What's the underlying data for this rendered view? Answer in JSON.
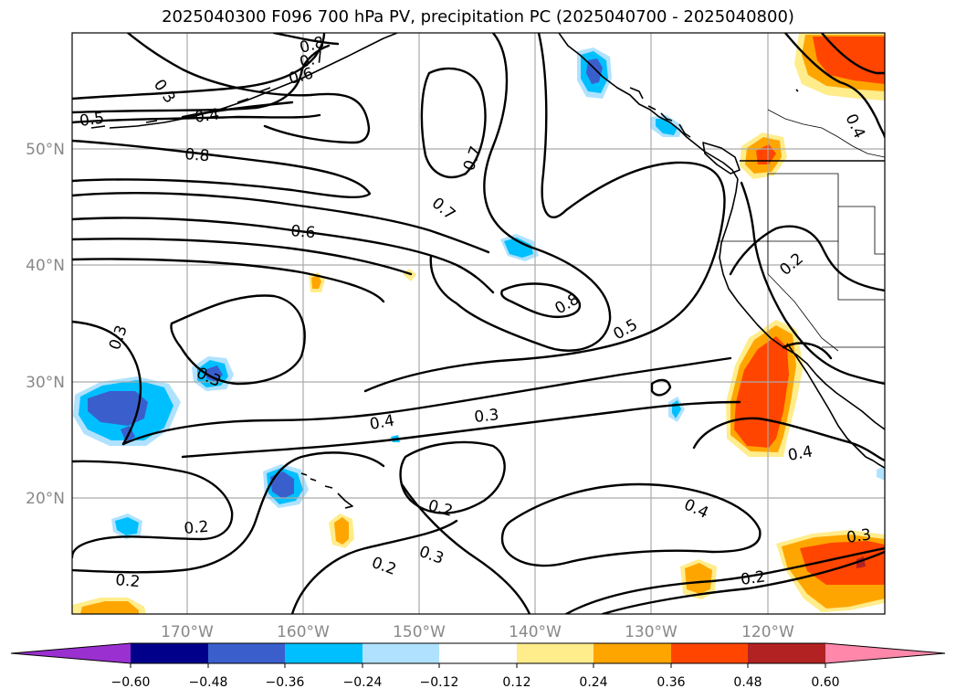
{
  "title": "2025040300 F096 700 hPa PV, precipitation PC (2025040700 - 2025040800)",
  "map": {
    "lat_labels": [
      "50°N",
      "40°N",
      "30°N",
      "20°N"
    ],
    "lon_labels": [
      "170°W",
      "160°W",
      "150°W",
      "140°W",
      "130°W",
      "120°W"
    ],
    "grid": true
  },
  "contour_labels": {
    "c_08_top": "0.8",
    "c_07_top": "0.7",
    "c_06_top": "0.6",
    "c_03_nw": "0.3",
    "c_05_w": "0.5",
    "c_04_nw": "0.4",
    "c_08_w": "0.8",
    "c_07_mid": "0.7",
    "c_07_mid2": "0.7",
    "c_06_w": "0.6",
    "c_08_mid": "0.8",
    "c_05_mid": "0.5",
    "c_03_w": "0.3",
    "c_03_w2": "0.3",
    "c_04_mid": "0.4",
    "c_03_mid": "0.3",
    "c_02_mid": "0.2",
    "c_04_e": "0.4",
    "c_04_e2": "0.4",
    "c_02_w": "0.2",
    "c_02_sw": "0.2",
    "c_02_s": "0.2",
    "c_03_s": "0.3",
    "c_02_se": "0.2",
    "c_03_se": "0.3",
    "c_04_ne": "0.4",
    "c_02_ne": "0.2"
  },
  "colorbar": {
    "ticks": [
      "−0.60",
      "−0.48",
      "−0.36",
      "−0.24",
      "−0.12",
      "0.12",
      "0.24",
      "0.36",
      "0.48",
      "0.60"
    ],
    "colors": [
      "#9b30d0",
      "#00008b",
      "#3a5fcd",
      "#00bfff",
      "#b0e2ff",
      "#ffffff",
      "#ffec8b",
      "#ffa500",
      "#ff4500",
      "#b22222",
      "#ff88aa"
    ]
  }
}
